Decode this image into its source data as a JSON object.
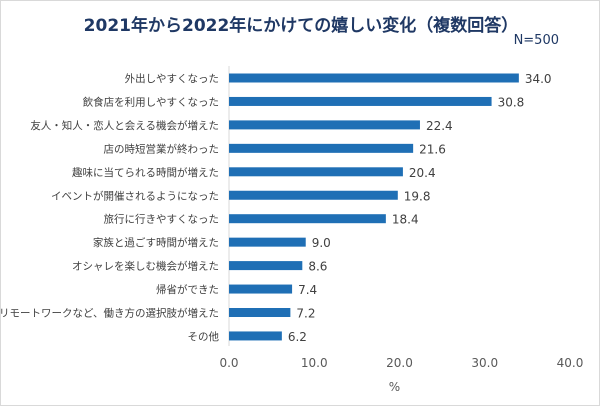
{
  "chart_data": {
    "type": "bar",
    "orientation": "horizontal",
    "title": "2021年から2022年にかけての嬉しい変化（複数回答）",
    "subtitle": "N=500",
    "xlabel": "%",
    "ylabel": "",
    "xlim": [
      0,
      40
    ],
    "xticks": [
      "0.0",
      "10.0",
      "20.0",
      "30.0",
      "40.0"
    ],
    "grid": false,
    "bar_color": "#1f6fb5",
    "categories": [
      "外出しやすくなった",
      "飲食店を利用しやすくなった",
      "友人・知人・恋人と会える機会が増えた",
      "店の時短営業が終わった",
      "趣味に当てられる時間が増えた",
      "イベントが開催されるようになった",
      "旅行に行きやすくなった",
      "家族と過ごす時間が増えた",
      "オシャレを楽しむ機会が増えた",
      "帰省ができた",
      "リモートワークなど、働き方の選択肢が増えた",
      "その他"
    ],
    "values": [
      34.0,
      30.8,
      22.4,
      21.6,
      20.4,
      19.8,
      18.4,
      9.0,
      8.6,
      7.4,
      7.2,
      6.2
    ],
    "value_labels": [
      "34.0",
      "30.8",
      "22.4",
      "21.6",
      "20.4",
      "19.8",
      "18.4",
      "9.0",
      "8.6",
      "7.4",
      "7.2",
      "6.2"
    ]
  }
}
